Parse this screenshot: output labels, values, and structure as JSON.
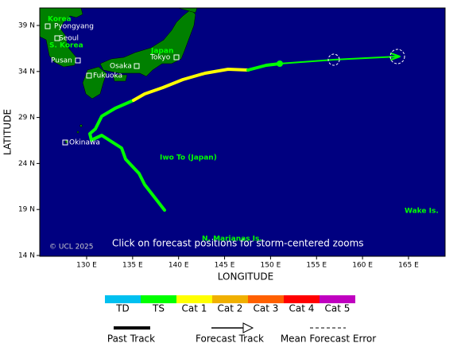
{
  "map": {
    "places": [
      {
        "label": "Korea",
        "kind": "country"
      },
      {
        "label": "Pyongyang",
        "kind": "city"
      },
      {
        "label": "Seoul",
        "kind": "city"
      },
      {
        "label": "S. Korea",
        "kind": "country"
      },
      {
        "label": "Pusan",
        "kind": "city"
      },
      {
        "label": "Osaka",
        "kind": "city"
      },
      {
        "label": "Japan",
        "kind": "country"
      },
      {
        "label": "Tokyo",
        "kind": "city"
      },
      {
        "label": "Fukuoka",
        "kind": "city"
      },
      {
        "label": "Okinawa",
        "kind": "city"
      },
      {
        "label": "Iwo To (Japan)",
        "kind": "country"
      },
      {
        "label": "Wake Is.",
        "kind": "country"
      },
      {
        "label": "N. Marianas Is.",
        "kind": "country"
      }
    ],
    "note": "Click on forecast positions for storm-centered zooms",
    "copyright": "© UCL 2025",
    "lat_ticks": [
      {
        "value": 14,
        "label": "14 N"
      },
      {
        "value": 19,
        "label": "19 N"
      },
      {
        "value": 24,
        "label": "24 N"
      },
      {
        "value": 29,
        "label": "29 N"
      },
      {
        "value": 34,
        "label": "34 N"
      },
      {
        "value": 39,
        "label": "39 N"
      }
    ],
    "lon_ticks": [
      {
        "value": 130,
        "label": "130 E"
      },
      {
        "value": 135,
        "label": "135 E"
      },
      {
        "value": 140,
        "label": "140 E"
      },
      {
        "value": 145,
        "label": "145 E"
      },
      {
        "value": 150,
        "label": "150 E"
      },
      {
        "value": 155,
        "label": "155 E"
      },
      {
        "value": 160,
        "label": "160 E"
      },
      {
        "value": 165,
        "label": "165 E"
      }
    ],
    "x_label": "LONGITUDE",
    "y_label": "LATITUDE"
  },
  "legend": {
    "scale": [
      {
        "label": "TD",
        "color": "#00c0f0"
      },
      {
        "label": "TS",
        "color": "#00ff00"
      },
      {
        "label": "Cat 1",
        "color": "#ffff00"
      },
      {
        "label": "Cat 2",
        "color": "#f0b000"
      },
      {
        "label": "Cat 3",
        "color": "#ff6000"
      },
      {
        "label": "Cat 4",
        "color": "#ff0000"
      },
      {
        "label": "Cat 5",
        "color": "#c000c0"
      }
    ],
    "past_track": "Past Track",
    "forecast_track": "Forecast Track",
    "forecast_error": "Mean Forecast Error"
  }
}
